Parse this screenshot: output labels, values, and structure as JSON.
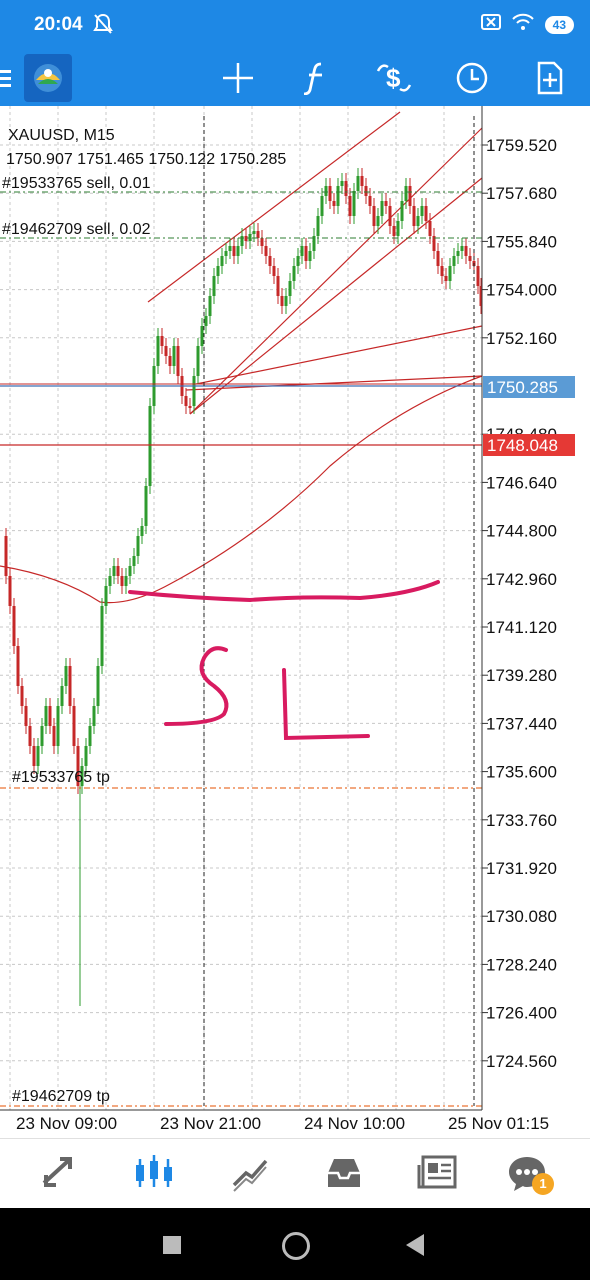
{
  "status_bar": {
    "time": "20:04",
    "battery": "43"
  },
  "toolbar": {
    "icons": [
      "menu-icon",
      "app-logo",
      "crosshair-icon",
      "indicators-icon",
      "trade-icon",
      "timeframe-clock-icon",
      "add-object-icon"
    ]
  },
  "chart": {
    "symbol_timeframe": "XAUUSD, M15",
    "ohlc": "1750.907 1751.465 1750.122 1750.285",
    "orders": [
      "#19533765 sell, 0.01",
      "#19462709 sell, 0.02"
    ],
    "tp_labels": [
      "#19533765 tp",
      "#19462709 tp"
    ],
    "price_ticks": [
      "1759.520",
      "1757.680",
      "1755.840",
      "1754.000",
      "1752.160",
      "1750.285",
      "1748.480",
      "1748.048",
      "1746.640",
      "1744.800",
      "1742.960",
      "1741.120",
      "1739.280",
      "1737.440",
      "1735.600",
      "1733.760",
      "1731.920",
      "1730.080",
      "1728.240",
      "1726.400",
      "1724.560"
    ],
    "current_price": "1750.285",
    "stop_price": "1748.048",
    "time_labels": [
      "23 Nov 09:00",
      "23 Nov 21:00",
      "24 Nov 10:00",
      "25 Nov 01:15"
    ],
    "colors": {
      "bull": "#2e9b2e",
      "bear": "#c62828",
      "current_price_bg": "#5b9bd5",
      "stop_price_bg": "#e53935",
      "handwriting": "#d81b60"
    }
  },
  "bottom_nav": {
    "items": [
      "quotes-icon",
      "chart-icon",
      "trade-icon",
      "history-icon",
      "news-icon",
      "messages-icon"
    ],
    "messages_badge": "1"
  }
}
